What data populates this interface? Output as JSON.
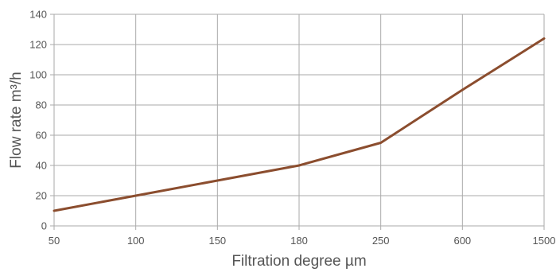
{
  "chart_data": {
    "type": "line",
    "title": "",
    "xlabel": "Filtration degree µm",
    "ylabel": "Flow rate m³/h",
    "categories": [
      "50",
      "100",
      "150",
      "180",
      "250",
      "600",
      "1500"
    ],
    "series": [
      {
        "values": [
          10,
          20,
          30,
          40,
          55,
          90,
          124
        ],
        "color": "#8b4d2e"
      }
    ],
    "ylim": [
      0,
      140
    ],
    "yticks": [
      "0",
      "20",
      "40",
      "60",
      "80",
      "100",
      "120",
      "140"
    ],
    "grid": true,
    "grid_color": "#aaaaaa",
    "legend": "none"
  }
}
